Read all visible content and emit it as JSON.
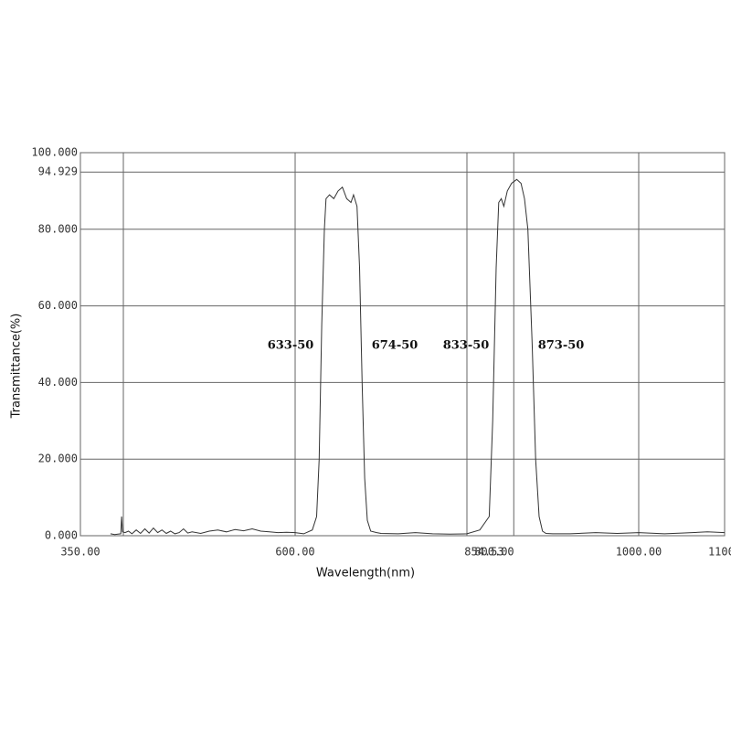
{
  "chart_data": {
    "type": "line",
    "x_label": "Wavelength(nm)",
    "y_label": "Transmittance(%)",
    "xlim": [
      350,
      1100
    ],
    "ylim": [
      0,
      100
    ],
    "xticks": [
      {
        "value": 350,
        "label": "350.00"
      },
      {
        "value": 600,
        "label": "600.00"
      },
      {
        "value": 800,
        "label": "800.00"
      },
      854.53,
      {
        "value": 1000,
        "label": "1000.00"
      },
      {
        "value": 1100,
        "label": "1100."
      }
    ],
    "x_reference_lines": [
      400
    ],
    "yticks": [
      {
        "value": 0,
        "label": "0.000"
      },
      {
        "value": 20,
        "label": "20.000"
      },
      {
        "value": 40,
        "label": "40.000"
      },
      {
        "value": 60,
        "label": "60.000"
      },
      {
        "value": 80,
        "label": "80.000"
      },
      94.929,
      {
        "value": 100,
        "label": "100.000"
      }
    ],
    "grid": true,
    "annotations": [
      "633-50",
      "674-50",
      "833-50",
      "873-50"
    ],
    "series": [
      {
        "color": "#333333",
        "x": [
          385,
          390,
          397,
          398,
          399,
          402,
          406,
          410,
          415,
          420,
          425,
          430,
          435,
          440,
          445,
          450,
          455,
          460,
          465,
          470,
          475,
          480,
          490,
          500,
          510,
          520,
          530,
          540,
          550,
          560,
          570,
          580,
          590,
          600,
          610,
          620,
          625,
          628,
          631,
          634,
          636,
          640,
          645,
          650,
          655,
          660,
          665,
          668,
          672,
          675,
          678,
          681,
          684,
          688,
          695,
          700,
          720,
          740,
          760,
          780,
          800,
          815,
          826,
          830,
          834,
          837,
          840,
          843,
          847,
          852,
          858,
          863,
          867,
          871,
          876,
          880,
          884,
          888,
          892,
          900,
          920,
          950,
          975,
          1000,
          1030,
          1050,
          1080,
          1100
        ],
        "values": [
          0.5,
          0.3,
          0.5,
          5,
          1,
          0.8,
          1.2,
          0.5,
          1.5,
          0.6,
          1.8,
          0.7,
          2,
          0.8,
          1.5,
          0.6,
          1.2,
          0.5,
          0.8,
          1.8,
          0.7,
          1,
          0.6,
          1.2,
          1.5,
          1,
          1.6,
          1.3,
          1.8,
          1.2,
          1,
          0.8,
          0.9,
          0.8,
          0.5,
          1.5,
          5,
          20,
          55,
          80,
          88,
          89,
          88,
          90,
          91,
          88,
          87,
          89,
          86,
          70,
          40,
          15,
          4,
          1.2,
          0.8,
          0.6,
          0.5,
          0.8,
          0.5,
          0.4,
          0.5,
          1.5,
          5,
          30,
          70,
          87,
          88,
          86,
          90,
          92,
          93,
          92,
          88,
          80,
          50,
          20,
          5,
          1.2,
          0.6,
          0.5,
          0.5,
          0.8,
          0.6,
          0.8,
          0.5,
          0.7,
          1,
          0.8
        ]
      }
    ]
  }
}
